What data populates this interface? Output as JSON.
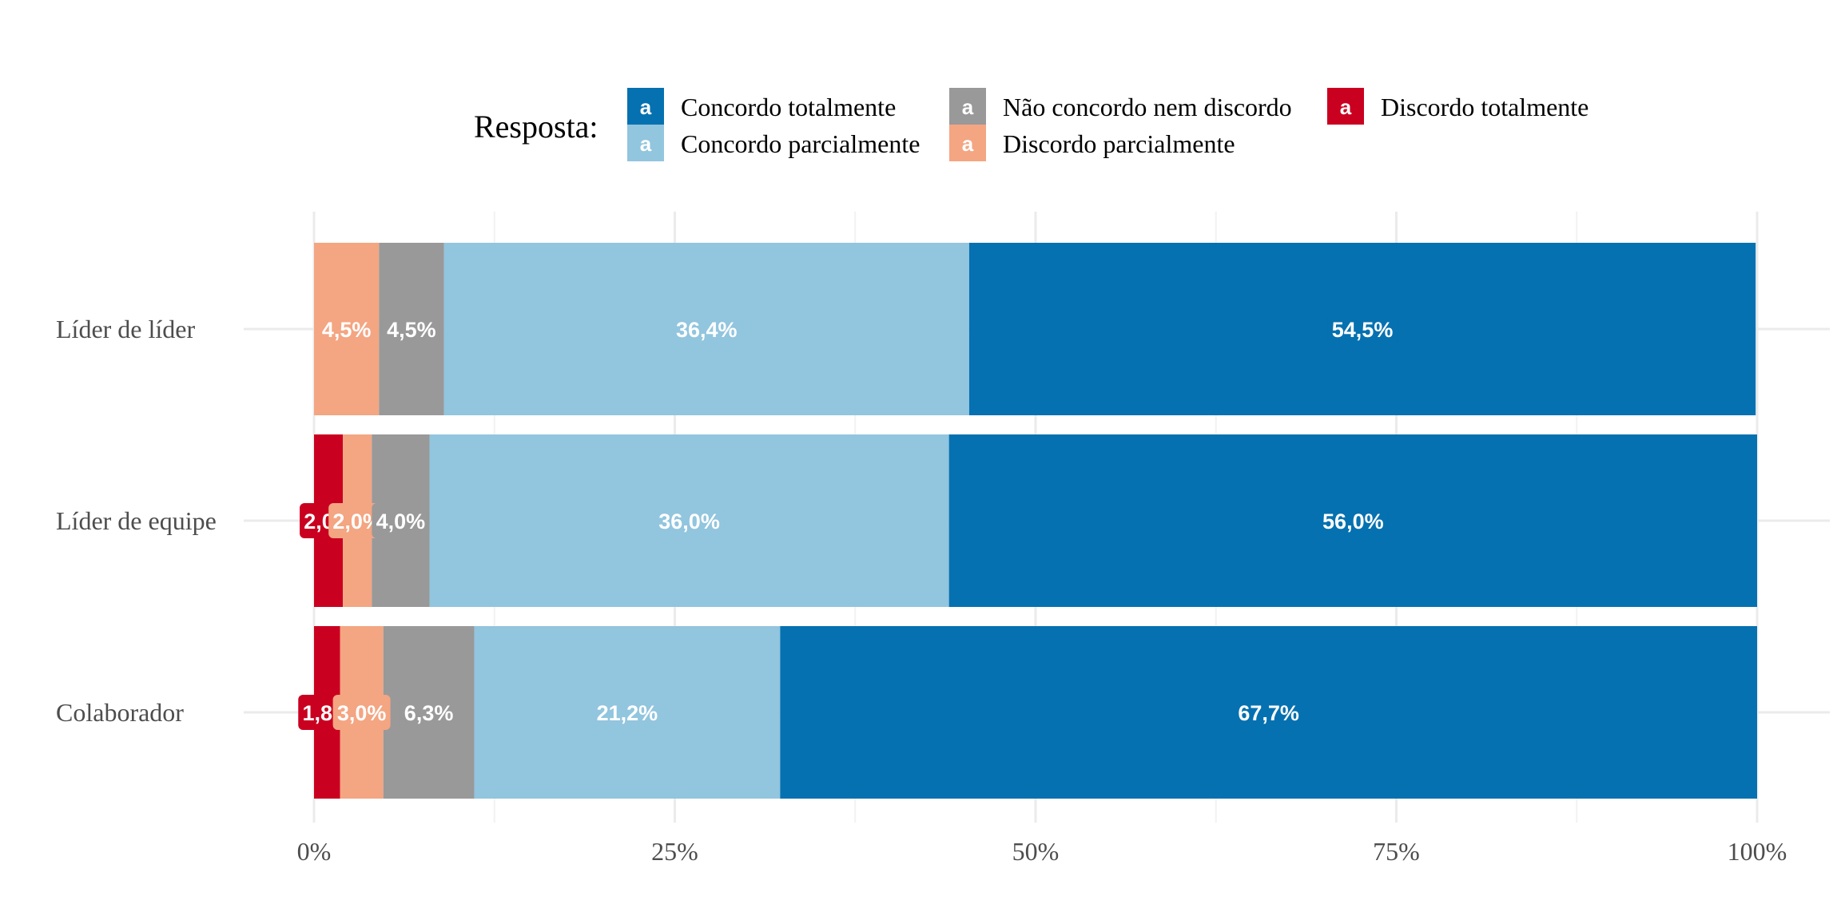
{
  "chart_data": {
    "type": "bar",
    "orientation": "horizontal",
    "stacked": true,
    "categories": [
      "Líder de líder",
      "Líder de equipe",
      "Colaborador"
    ],
    "series": [
      {
        "name": "Discordo totalmente",
        "color": "#CA0020",
        "values": [
          0,
          2.0,
          1.8
        ],
        "labels": [
          "",
          "2,0%",
          "1,8%"
        ]
      },
      {
        "name": "Discordo parcialmente",
        "color": "#F4A582",
        "values": [
          4.5,
          2.0,
          3.0
        ],
        "labels": [
          "4,5%",
          "2,0%",
          "3,0%"
        ]
      },
      {
        "name": "Não concordo nem discordo",
        "color": "#999999",
        "values": [
          4.5,
          4.0,
          6.3
        ],
        "labels": [
          "4,5%",
          "4,0%",
          "6,3%"
        ]
      },
      {
        "name": "Concordo parcialmente",
        "color": "#92C5DE",
        "values": [
          36.4,
          36.0,
          21.2
        ],
        "labels": [
          "36,4%",
          "36,0%",
          "21,2%"
        ]
      },
      {
        "name": "Concordo totalmente",
        "color": "#0571B0",
        "values": [
          54.5,
          56.0,
          67.7
        ],
        "labels": [
          "54,5%",
          "56,0%",
          "67,7%"
        ]
      }
    ],
    "xlim": [
      0,
      100
    ],
    "x_ticks": [
      "0%",
      "25%",
      "50%",
      "75%",
      "100%"
    ],
    "legend": {
      "title": "Resposta:",
      "position": "top",
      "order": [
        "Concordo totalmente",
        "Concordo parcialmente",
        "Não concordo nem discordo",
        "Discordo parcialmente",
        "Discordo totalmente"
      ],
      "key_glyph": "a"
    },
    "grid": true
  }
}
